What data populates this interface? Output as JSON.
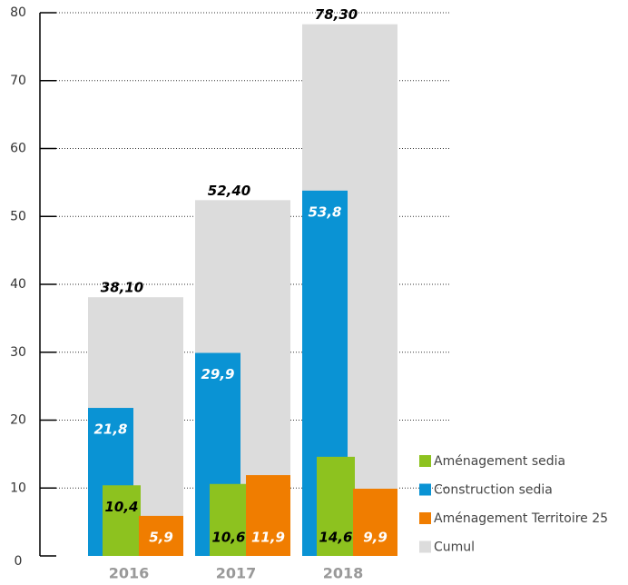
{
  "chart_data": {
    "type": "bar",
    "categories": [
      "2016",
      "2017",
      "2018"
    ],
    "series": [
      {
        "name": "Aménagement sedia",
        "color": "#8dc21f",
        "values": [
          10.4,
          10.6,
          14.6
        ],
        "value_labels": [
          "10,4",
          "10,6",
          "14,6"
        ]
      },
      {
        "name": "Construction sedia",
        "color": "#0a93d4",
        "values": [
          21.8,
          29.9,
          53.8
        ],
        "value_labels": [
          "21,8",
          "29,9",
          "53,8"
        ]
      },
      {
        "name": "Aménagement Territoire 25",
        "color": "#f07d00",
        "values": [
          5.9,
          11.9,
          9.9
        ],
        "value_labels": [
          "5,9",
          "11,9",
          "9,9"
        ]
      },
      {
        "name": "Cumul",
        "color": "#dcdcdc",
        "values": [
          38.1,
          52.4,
          78.3
        ],
        "value_labels": [
          "38,10",
          "52,40",
          "78,30"
        ]
      }
    ],
    "ylim": [
      0,
      80
    ],
    "yticks": [
      0,
      10,
      20,
      30,
      40,
      50,
      60,
      70,
      80
    ],
    "grid": true,
    "legend": "lower right"
  }
}
